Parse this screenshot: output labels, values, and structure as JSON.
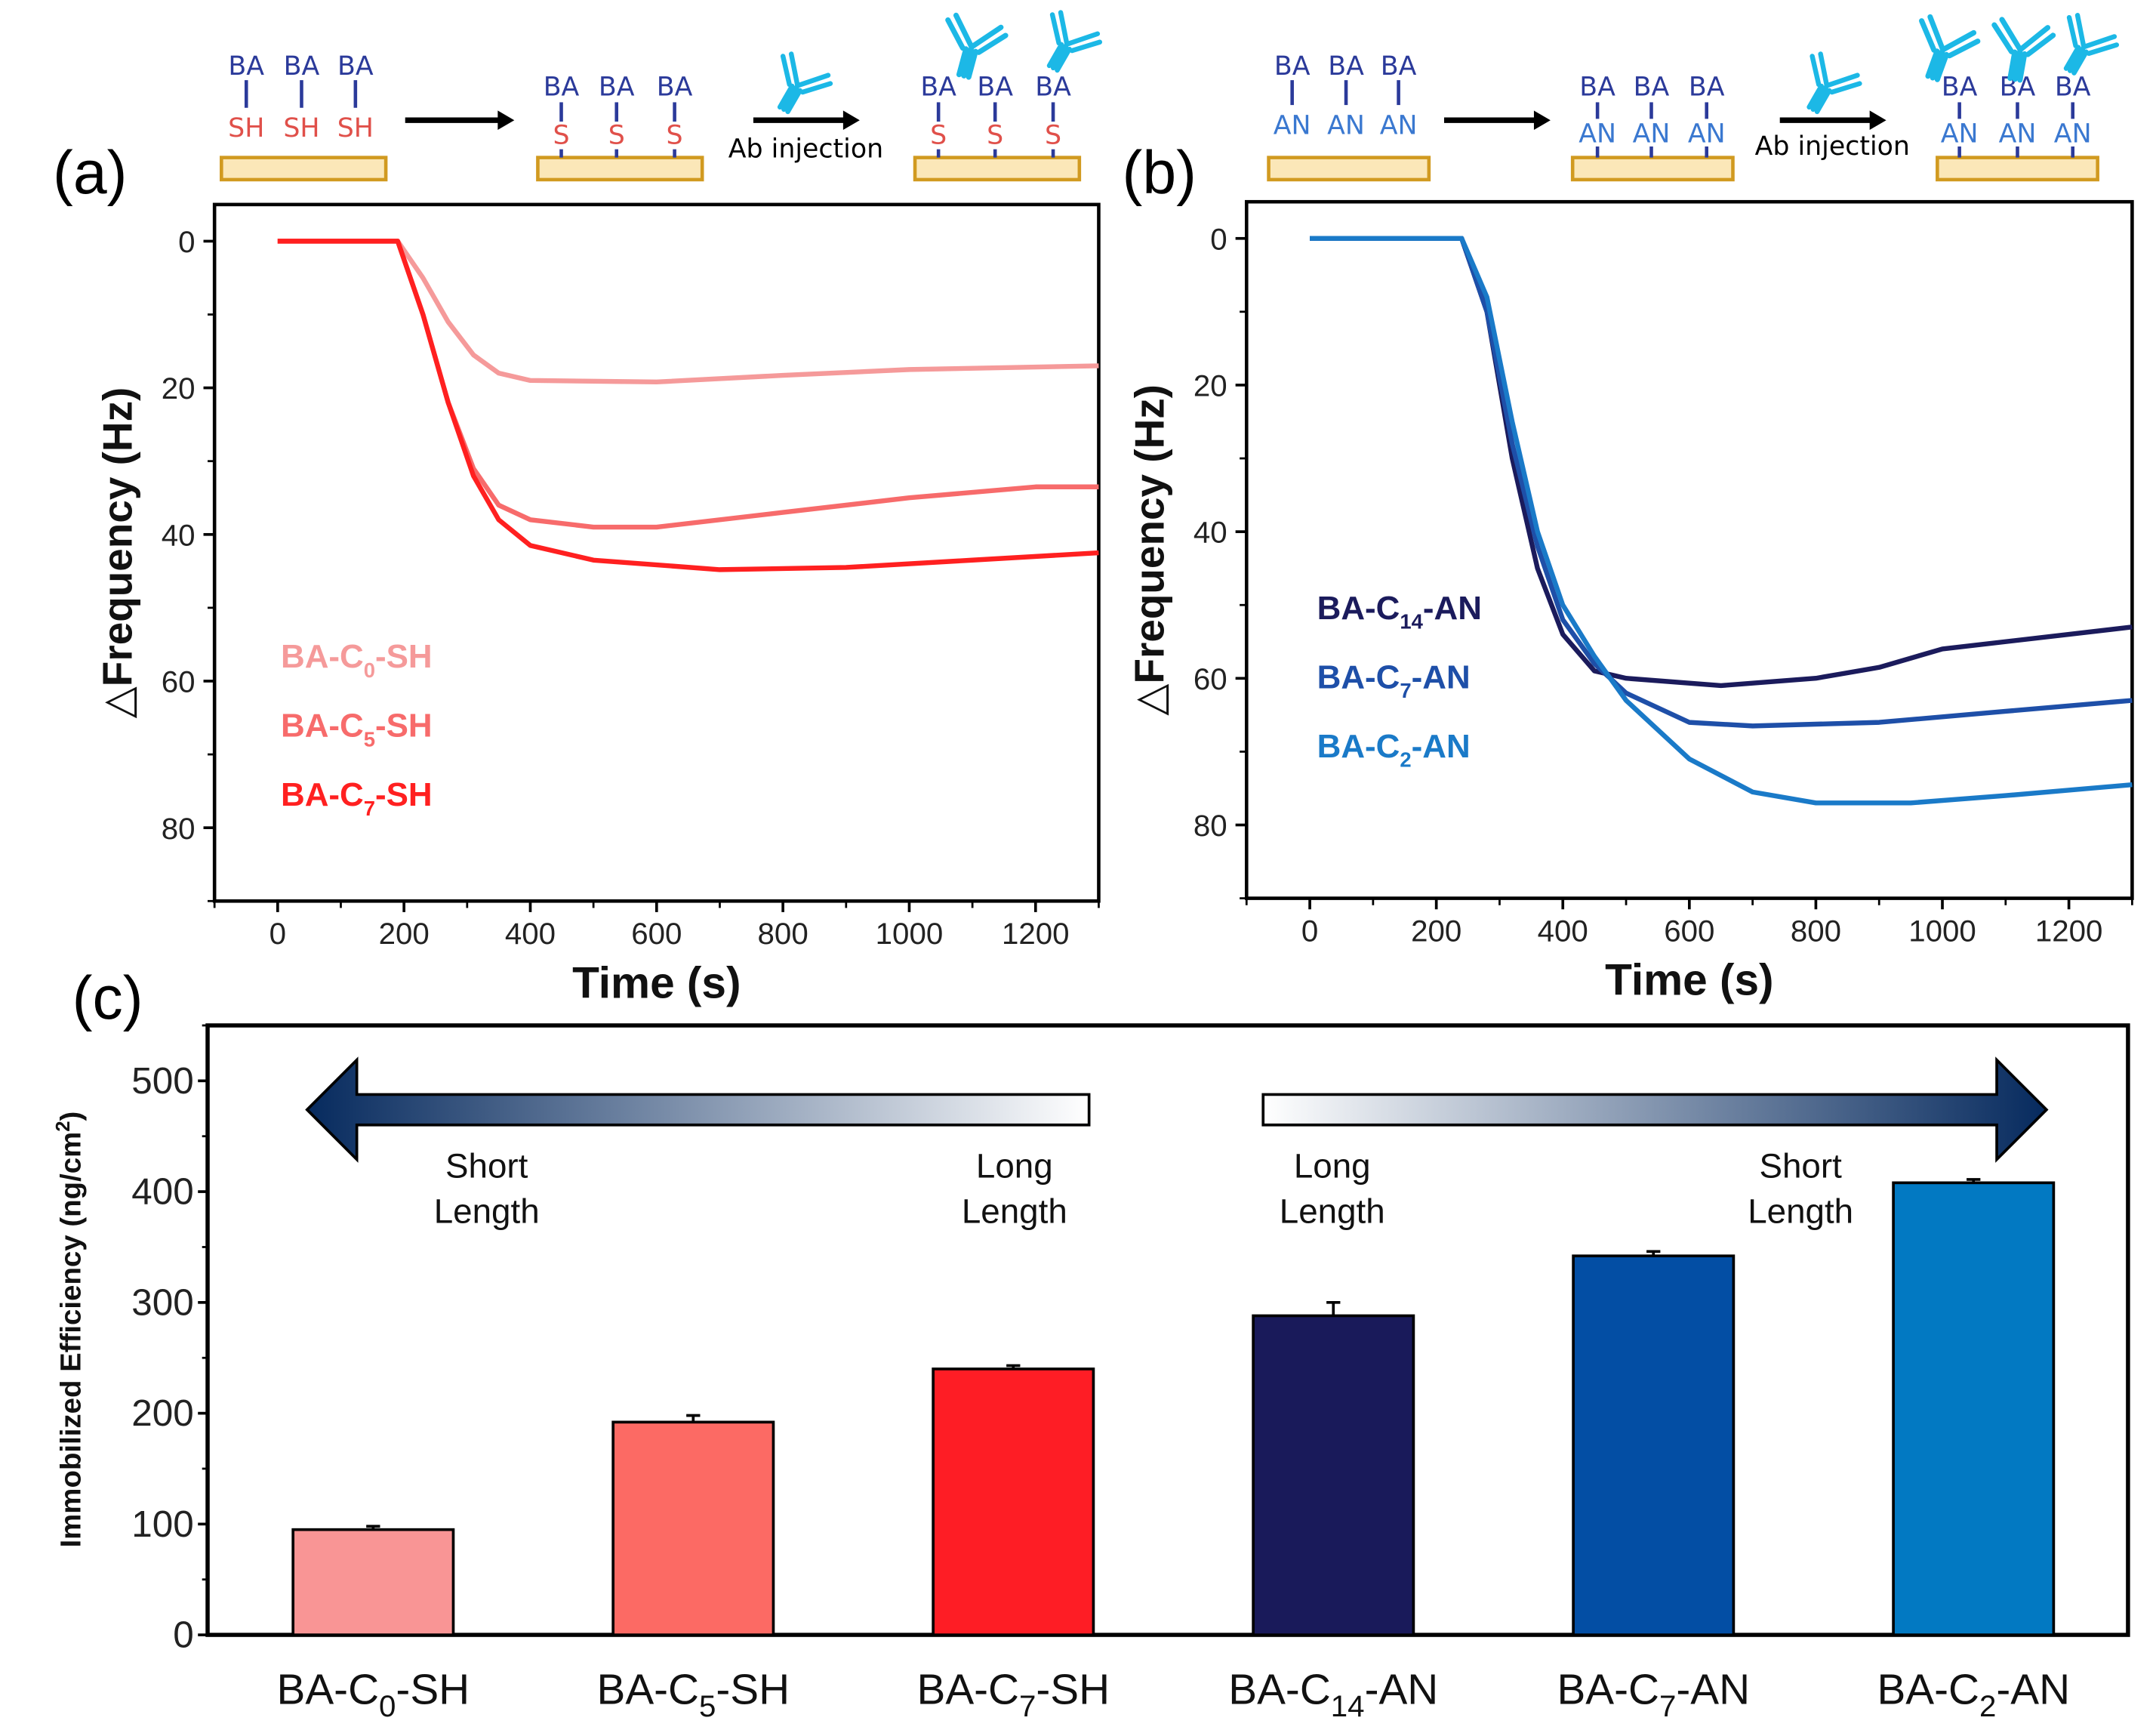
{
  "panel_labels": {
    "a": "(a)",
    "b": "(b)",
    "c": "(c)"
  },
  "schematic": {
    "receptor": "BA",
    "thiol": "SH",
    "thiolate": "S",
    "amine": "AN",
    "ab_injection": "Ab injection",
    "colors": {
      "receptor": "#2b3a9a",
      "thiol": "#e0504a",
      "amine": "#3a78d0",
      "antibody": "#1cb8e6",
      "substrate_fill": "#fbe7b8",
      "substrate_edge": "#d19a20"
    }
  },
  "chart_data": [
    {
      "id": "a",
      "type": "line",
      "xlabel": "Time (s)",
      "ylabel": "△Frequency (Hz)",
      "xlim": [
        -100,
        1300
      ],
      "ylim": [
        -5,
        90
      ],
      "y_inverted": true,
      "xticks": [
        0,
        200,
        400,
        600,
        800,
        1000,
        1200
      ],
      "yticks": [
        0,
        20,
        40,
        60,
        80
      ],
      "legend_position": "left-middle",
      "series": [
        {
          "name": {
            "pre": "BA-C",
            "sub": "0",
            "post": "-SH"
          },
          "color": "#f59a9a",
          "points": [
            [
              0,
              0
            ],
            [
              190,
              0
            ],
            [
              230,
              5
            ],
            [
              270,
              11
            ],
            [
              310,
              15.5
            ],
            [
              350,
              18
            ],
            [
              400,
              19
            ],
            [
              600,
              19.2
            ],
            [
              800,
              18.3
            ],
            [
              1000,
              17.5
            ],
            [
              1300,
              17
            ]
          ]
        },
        {
          "name": {
            "pre": "BA-C",
            "sub": "5",
            "post": "-SH"
          },
          "color": "#f76b6b",
          "points": [
            [
              0,
              0
            ],
            [
              190,
              0
            ],
            [
              230,
              10
            ],
            [
              270,
              22
            ],
            [
              310,
              31
            ],
            [
              350,
              36
            ],
            [
              400,
              38
            ],
            [
              500,
              39
            ],
            [
              600,
              39
            ],
            [
              800,
              37
            ],
            [
              1000,
              35
            ],
            [
              1200,
              33.5
            ],
            [
              1300,
              33.5
            ]
          ]
        },
        {
          "name": {
            "pre": "BA-C",
            "sub": "7",
            "post": "-SH"
          },
          "color": "#ff2020",
          "points": [
            [
              0,
              0
            ],
            [
              190,
              0
            ],
            [
              230,
              10
            ],
            [
              270,
              22
            ],
            [
              310,
              32
            ],
            [
              350,
              38
            ],
            [
              400,
              41.5
            ],
            [
              500,
              43.5
            ],
            [
              700,
              44.8
            ],
            [
              900,
              44.5
            ],
            [
              1100,
              43.5
            ],
            [
              1300,
              42.5
            ]
          ]
        }
      ]
    },
    {
      "id": "b",
      "type": "line",
      "xlabel": "Time (s)",
      "ylabel": "△Frequency (Hz)",
      "xlim": [
        -100,
        1300
      ],
      "ylim": [
        -5,
        90
      ],
      "y_inverted": true,
      "xticks": [
        0,
        200,
        400,
        600,
        800,
        1000,
        1200
      ],
      "yticks": [
        0,
        20,
        40,
        60,
        80
      ],
      "legend_position": "left-middle",
      "series": [
        {
          "name": {
            "pre": "BA-C",
            "sub": "14",
            "post": "-AN"
          },
          "color": "#1b1b5c",
          "points": [
            [
              0,
              0
            ],
            [
              240,
              0
            ],
            [
              280,
              10
            ],
            [
              320,
              30
            ],
            [
              360,
              45
            ],
            [
              400,
              54
            ],
            [
              450,
              59
            ],
            [
              500,
              60
            ],
            [
              650,
              61
            ],
            [
              800,
              60
            ],
            [
              900,
              58.5
            ],
            [
              1000,
              56
            ],
            [
              1200,
              54
            ],
            [
              1300,
              53
            ]
          ]
        },
        {
          "name": {
            "pre": "BA-C",
            "sub": "7",
            "post": "-AN"
          },
          "color": "#1e4fa8",
          "points": [
            [
              0,
              0
            ],
            [
              240,
              0
            ],
            [
              280,
              10
            ],
            [
              320,
              28
            ],
            [
              360,
              42
            ],
            [
              400,
              52
            ],
            [
              450,
              58
            ],
            [
              500,
              62
            ],
            [
              600,
              66
            ],
            [
              700,
              66.5
            ],
            [
              900,
              66
            ],
            [
              1100,
              64.5
            ],
            [
              1300,
              63
            ]
          ]
        },
        {
          "name": {
            "pre": "BA-C",
            "sub": "2",
            "post": "-AN"
          },
          "color": "#1a7ac8",
          "points": [
            [
              0,
              0
            ],
            [
              240,
              0
            ],
            [
              280,
              8
            ],
            [
              320,
              25
            ],
            [
              360,
              40
            ],
            [
              400,
              50
            ],
            [
              450,
              57
            ],
            [
              500,
              63
            ],
            [
              600,
              71
            ],
            [
              700,
              75.5
            ],
            [
              800,
              77
            ],
            [
              950,
              77
            ],
            [
              1100,
              76
            ],
            [
              1300,
              74.5
            ]
          ]
        }
      ]
    },
    {
      "id": "c",
      "type": "bar",
      "ylabel": {
        "pre": "Immobilized Efficiency (ng/cm",
        "sup": "2",
        "post": ")"
      },
      "ylim": [
        0,
        550
      ],
      "yticks": [
        0,
        100,
        200,
        300,
        400,
        500
      ],
      "categories": [
        {
          "pre": "BA-C",
          "sub": "0",
          "post": "-SH"
        },
        {
          "pre": "BA-C",
          "sub": "5",
          "post": "-SH"
        },
        {
          "pre": "BA-C",
          "sub": "7",
          "post": "-SH"
        },
        {
          "pre": "BA-C",
          "sub": "14",
          "post": "-AN"
        },
        {
          "pre": "BA-C",
          "sub": "7",
          "post": "-AN"
        },
        {
          "pre": "BA-C",
          "sub": "2",
          "post": "-AN"
        }
      ],
      "values": [
        95,
        192,
        240,
        288,
        342,
        408
      ],
      "errors": [
        3,
        6,
        3,
        12,
        4,
        3
      ],
      "colors": [
        "#f99595",
        "#fc6a64",
        "#fe1d25",
        "#191a5a",
        "#034ea4",
        "#0279c2"
      ],
      "annotations": [
        {
          "line1": "Short",
          "line2": "Length"
        },
        {
          "line1": "Long",
          "line2": "Length"
        },
        {
          "line1": "Long",
          "line2": "Length"
        },
        {
          "line1": "Short",
          "line2": "Length"
        }
      ],
      "arrow_gradient": [
        "#062a5e",
        "#ffffff"
      ]
    }
  ]
}
